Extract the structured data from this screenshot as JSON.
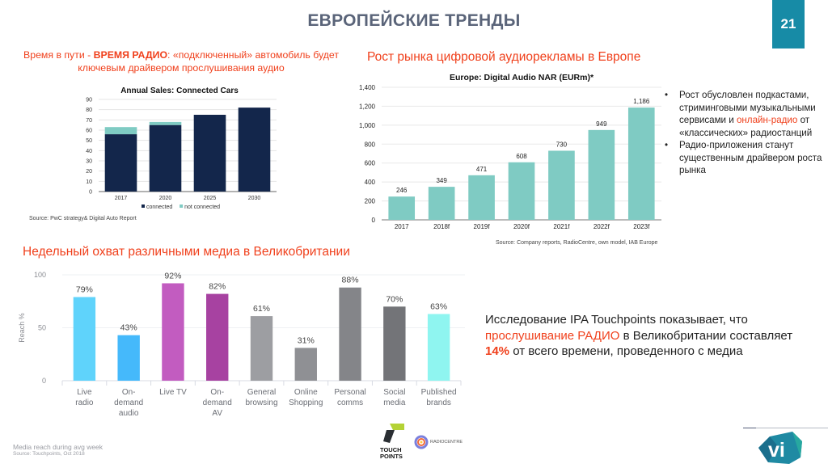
{
  "header": {
    "title": "ЕВРОПЕЙСКИЕ ТРЕНДЫ",
    "page_number": "21"
  },
  "cars_section": {
    "headline_part1": "Время в пути - ",
    "headline_bold": "ВРЕМЯ РАДИО",
    "headline_part2": ": «подключенный» автомобиль будет ключевым драйвером прослушивания аудио",
    "source": "Source: PwC strategy& Digital Auto Report"
  },
  "nar_section": {
    "headline": "Рост рынка цифровой аудиорекламы в Европе",
    "source": "Source: Company reports, RadioCentre, own model, IAB Europe",
    "bullets": [
      {
        "before": "Рост обусловлен подкастами, стриминговыми музыкальными сервисами и ",
        "highlight": "онлайн-радио",
        "after": " от «классических» радиостанций"
      },
      {
        "before": "Радио-приложения станут существенным драйвером роста рынка",
        "highlight": "",
        "after": ""
      }
    ]
  },
  "reach_section": {
    "headline": "Недельный охват различными медиа в Великобритании",
    "footnote": "Media reach during avg week",
    "source": "Source: Touchpoints, Oct 2018",
    "logos": {
      "touchpoints_line1": "TOUCH",
      "touchpoints_line2": "POINTS",
      "radiocentre": "RADIOCENTRE"
    }
  },
  "ipa_text": {
    "part1": "Исследование IPA Touchpoints показывает, что ",
    "highlight1": "прослушивание РАДИО",
    "part2": " в Великобритании составляет ",
    "highlight2": "14%",
    "part3": " от всего времени, проведенного с медиа"
  },
  "brand_logo": "vi",
  "colors": {
    "accent_red": "#f0401c",
    "page_box": "#178ba6",
    "title_gray": "#5a6479",
    "navy": "#13264b",
    "teal": "#7fcbc3"
  },
  "chart_data": [
    {
      "type": "bar",
      "stacked": true,
      "title": "Annual Sales: Connected Cars",
      "categories": [
        "2017",
        "2020",
        "2025",
        "2030"
      ],
      "series": [
        {
          "name": "connected",
          "color": "#13264b",
          "values": [
            56,
            65,
            75,
            82
          ]
        },
        {
          "name": "not connected",
          "color": "#7fcbc3",
          "values": [
            7,
            3,
            0,
            0
          ]
        }
      ],
      "yticks": [
        "0",
        "10",
        "20",
        "30",
        "40",
        "50",
        "60",
        "70",
        "80",
        "90"
      ],
      "ylim": [
        0,
        90
      ],
      "legend": "bottom",
      "grid": true
    },
    {
      "type": "bar",
      "title": "Europe: Digital Audio NAR (EURm)*",
      "categories": [
        "2017",
        "2018f",
        "2019f",
        "2020f",
        "2021f",
        "2022f",
        "2023f"
      ],
      "values": [
        246,
        349,
        471,
        608,
        730,
        949,
        1186
      ],
      "labels": [
        "246",
        "349",
        "471",
        "608",
        "730",
        "949",
        "1,186"
      ],
      "color": "#7fcbc3",
      "yticks": [
        "0",
        "200",
        "400",
        "600",
        "800",
        "1,000",
        "1,200",
        "1,400"
      ],
      "ylim": [
        0,
        1400
      ],
      "grid": true
    },
    {
      "type": "bar",
      "title": "",
      "ylabel": "Reach %",
      "categories": [
        [
          "Live",
          "radio"
        ],
        [
          "On-",
          "demand",
          "audio"
        ],
        [
          "Live TV"
        ],
        [
          "On-",
          "demand",
          "AV"
        ],
        [
          "General",
          "browsing"
        ],
        [
          "Online",
          "Shopping"
        ],
        [
          "Personal",
          "comms"
        ],
        [
          "Social",
          "media"
        ],
        [
          "Published",
          "brands"
        ]
      ],
      "values": [
        79,
        43,
        92,
        82,
        61,
        31,
        88,
        70,
        63
      ],
      "labels": [
        "79%",
        "43%",
        "92%",
        "82%",
        "61%",
        "31%",
        "88%",
        "70%",
        "63%"
      ],
      "colors": [
        "#5fd3fb",
        "#45b9fb",
        "#c25cc0",
        "#a742a1",
        "#9d9ea2",
        "#8f9094",
        "#848589",
        "#737478",
        "#8ff5f0"
      ],
      "yticks": [
        "0",
        "50",
        "100"
      ],
      "ylim": [
        0,
        100
      ],
      "grid": true
    }
  ]
}
